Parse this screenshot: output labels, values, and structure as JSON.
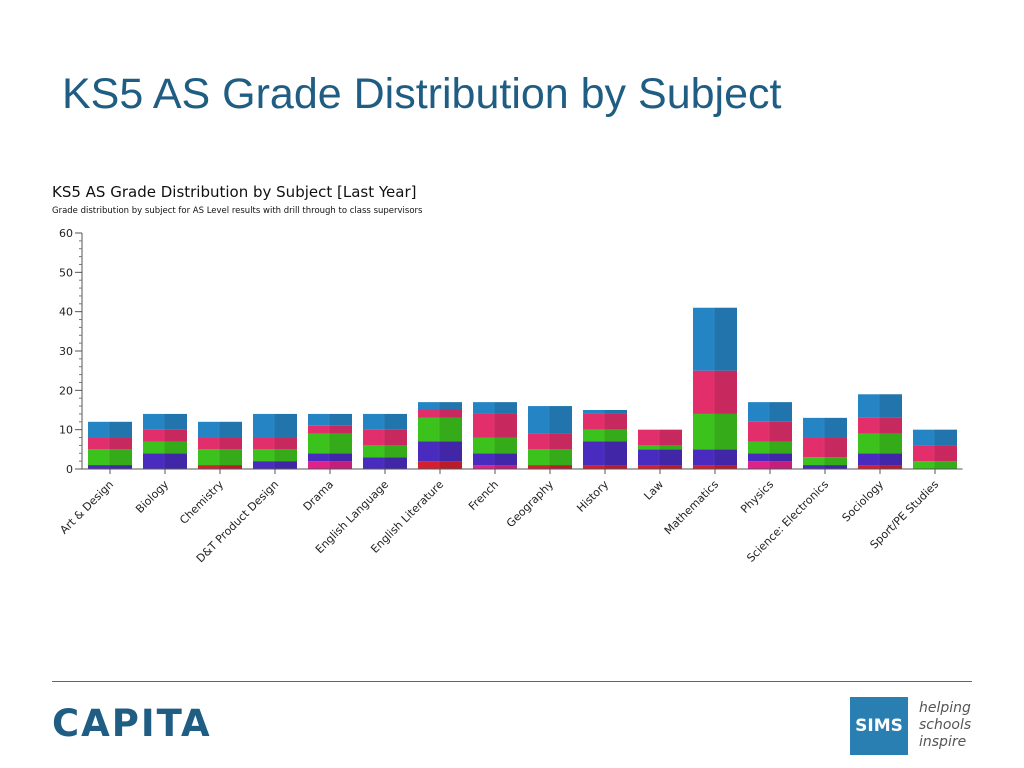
{
  "slide": {
    "title": "KS5 AS Grade Distribution by Subject"
  },
  "chart_data": {
    "type": "bar",
    "stacked": true,
    "title": "KS5 AS Grade Distribution by Subject [Last Year]",
    "subtitle": "Grade distribution by subject for AS Level results with drill through to class supervisors",
    "xlabel": "",
    "ylabel": "",
    "ylim": [
      0,
      60
    ],
    "yticks": [
      0,
      10,
      20,
      30,
      40,
      50,
      60
    ],
    "grid": false,
    "categories": [
      "Art & Design",
      "Biology",
      "Chemistry",
      "D&T Product Design",
      "Drama",
      "English Language",
      "English Literature",
      "French",
      "Geography",
      "History",
      "Law",
      "Mathematics",
      "Physics",
      "Science: Electronics",
      "Sociology",
      "Sport/PE Studies"
    ],
    "series": [
      {
        "color": "#d41f2f",
        "values": [
          0,
          0,
          1,
          0,
          0,
          0,
          2,
          0,
          1,
          1,
          1,
          1,
          0,
          0,
          1,
          0
        ]
      },
      {
        "color": "#e0218a",
        "values": [
          0,
          0,
          0,
          0,
          2,
          0,
          0,
          1,
          0,
          0,
          0,
          0,
          2,
          0,
          0,
          0
        ]
      },
      {
        "color": "#4a2bbf",
        "values": [
          1,
          4,
          0,
          2,
          2,
          3,
          5,
          3,
          0,
          6,
          4,
          4,
          2,
          1,
          3,
          0
        ]
      },
      {
        "color": "#3cc21c",
        "values": [
          4,
          3,
          4,
          3,
          5,
          3,
          6,
          4,
          4,
          3,
          1,
          9,
          3,
          2,
          5,
          2
        ]
      },
      {
        "color": "#e22f6b",
        "values": [
          3,
          3,
          3,
          3,
          2,
          4,
          2,
          6,
          4,
          4,
          4,
          11,
          5,
          5,
          4,
          4
        ]
      },
      {
        "color": "#2585c4",
        "values": [
          4,
          4,
          4,
          6,
          3,
          4,
          2,
          3,
          7,
          1,
          0,
          16,
          5,
          5,
          6,
          4
        ]
      }
    ]
  },
  "footer": {
    "logo": "CAPITA",
    "sims": "SIMS",
    "tagline": [
      "helping",
      "schools",
      "inspire"
    ]
  }
}
